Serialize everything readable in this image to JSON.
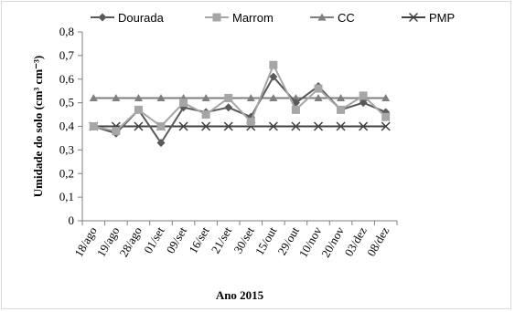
{
  "chart_data": {
    "type": "line",
    "title": "",
    "xlabel": "Ano 2015",
    "ylabel": "Umidade do solo (cm³ cm⁻³)",
    "ylim": [
      0,
      0.8
    ],
    "y_ticks": [
      "0",
      "0,1",
      "0,2",
      "0,3",
      "0,4",
      "0,5",
      "0,6",
      "0,7",
      "0,8"
    ],
    "categories": [
      "18/ago",
      "19/ago",
      "28/ago",
      "01/set",
      "09/set",
      "16/set",
      "21/set",
      "30/set",
      "15/out",
      "29/out",
      "10/nov",
      "20/nov",
      "03/dez",
      "08/dez"
    ],
    "grid": false,
    "legend_position": "top",
    "series": [
      {
        "name": "Dourada",
        "color": "#595959",
        "marker": "diamond",
        "values": [
          0.4,
          0.37,
          0.47,
          0.33,
          0.48,
          0.46,
          0.48,
          0.44,
          0.61,
          0.5,
          0.57,
          0.47,
          0.5,
          0.46
        ]
      },
      {
        "name": "Marrom",
        "color": "#a6a6a6",
        "marker": "square",
        "values": [
          0.4,
          0.38,
          0.47,
          0.4,
          0.5,
          0.45,
          0.52,
          0.42,
          0.66,
          0.47,
          0.56,
          0.47,
          0.53,
          0.44
        ]
      },
      {
        "name": "CC",
        "color": "#7f7f7f",
        "marker": "triangle",
        "values": [
          0.52,
          0.52,
          0.52,
          0.52,
          0.52,
          0.52,
          0.52,
          0.52,
          0.52,
          0.52,
          0.52,
          0.52,
          0.52,
          0.52
        ]
      },
      {
        "name": "PMP",
        "color": "#404040",
        "marker": "x",
        "values": [
          0.4,
          0.4,
          0.4,
          0.4,
          0.4,
          0.4,
          0.4,
          0.4,
          0.4,
          0.4,
          0.4,
          0.4,
          0.4,
          0.4
        ]
      }
    ]
  }
}
